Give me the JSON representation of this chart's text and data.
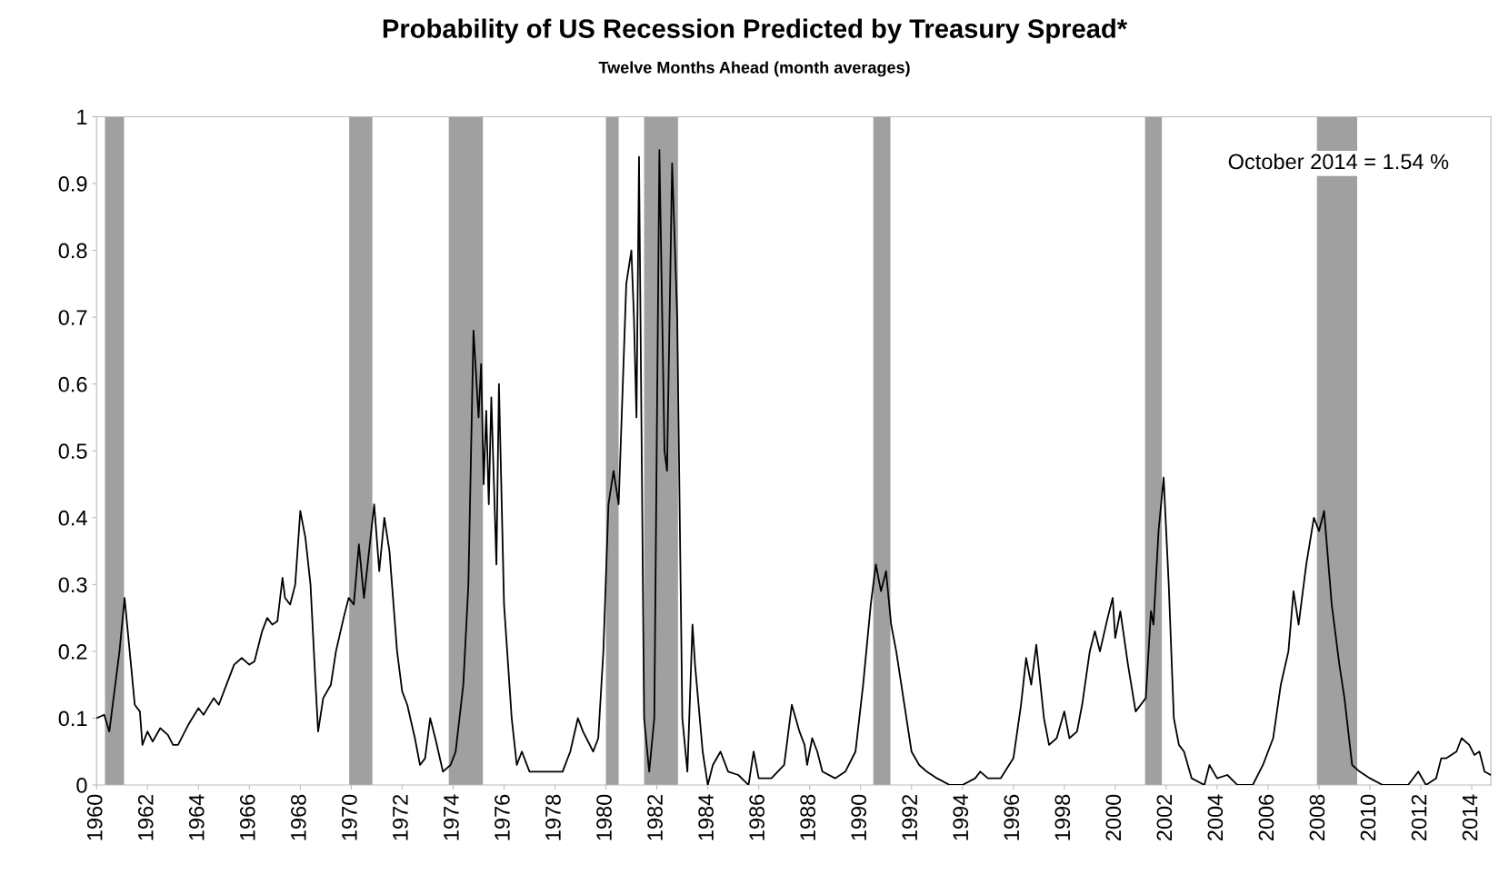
{
  "chart_data": {
    "type": "line",
    "title": "Probability of US Recession Predicted by Treasury Spread*",
    "subtitle": "Twelve Months Ahead (month averages)",
    "annotations": [
      "October 2014 = 1.54 %"
    ],
    "xlim": [
      1960,
      2014.75
    ],
    "xticks": [
      1960,
      1962,
      1964,
      1966,
      1968,
      1970,
      1972,
      1974,
      1976,
      1978,
      1980,
      1982,
      1984,
      1986,
      1988,
      1990,
      1992,
      1994,
      1996,
      1998,
      2000,
      2002,
      2004,
      2006,
      2008,
      2010,
      2012,
      2014
    ],
    "ylim": [
      0,
      1
    ],
    "yticks": [
      0,
      0.1,
      0.2,
      0.3,
      0.4,
      0.5,
      0.6,
      0.7,
      0.8,
      0.9,
      1
    ],
    "grid": false,
    "line_style": "solid",
    "marker": "none",
    "bands": [
      {
        "axis": "x",
        "from": 1960.33,
        "to": 1961.08,
        "color": "#a0a0a0"
      },
      {
        "axis": "x",
        "from": 1969.92,
        "to": 1970.83,
        "color": "#a0a0a0"
      },
      {
        "axis": "x",
        "from": 1973.83,
        "to": 1975.17,
        "color": "#a0a0a0"
      },
      {
        "axis": "x",
        "from": 1980.0,
        "to": 1980.5,
        "color": "#a0a0a0"
      },
      {
        "axis": "x",
        "from": 1981.5,
        "to": 1982.83,
        "color": "#a0a0a0"
      },
      {
        "axis": "x",
        "from": 1990.5,
        "to": 1991.17,
        "color": "#a0a0a0"
      },
      {
        "axis": "x",
        "from": 2001.17,
        "to": 2001.83,
        "color": "#a0a0a0"
      },
      {
        "axis": "x",
        "from": 2007.92,
        "to": 2009.5,
        "color": "#a0a0a0"
      }
    ],
    "series": [
      {
        "color": "#000000",
        "x": [
          1960.0,
          1960.3,
          1960.5,
          1960.6,
          1960.9,
          1961.1,
          1961.3,
          1961.5,
          1961.7,
          1961.8,
          1962.0,
          1962.2,
          1962.5,
          1962.8,
          1963.0,
          1963.2,
          1963.6,
          1964.0,
          1964.2,
          1964.6,
          1964.8,
          1965.1,
          1965.4,
          1965.7,
          1966.0,
          1966.2,
          1966.5,
          1966.7,
          1966.9,
          1967.1,
          1967.3,
          1967.4,
          1967.6,
          1967.8,
          1968.0,
          1968.2,
          1968.4,
          1968.6,
          1968.7,
          1968.9,
          1969.2,
          1969.4,
          1969.7,
          1969.9,
          1970.1,
          1970.3,
          1970.5,
          1970.7,
          1970.9,
          1971.1,
          1971.3,
          1971.5,
          1971.8,
          1972.0,
          1972.2,
          1972.5,
          1972.7,
          1972.9,
          1973.1,
          1973.3,
          1973.6,
          1973.9,
          1974.1,
          1974.4,
          1974.6,
          1974.8,
          1975.0,
          1975.1,
          1975.2,
          1975.3,
          1975.4,
          1975.5,
          1975.7,
          1975.8,
          1976.0,
          1976.3,
          1976.5,
          1976.7,
          1977.0,
          1977.5,
          1978.0,
          1978.3,
          1978.6,
          1978.9,
          1979.1,
          1979.5,
          1979.7,
          1979.9,
          1980.1,
          1980.3,
          1980.5,
          1980.8,
          1981.0,
          1981.1,
          1981.2,
          1981.3,
          1981.5,
          1981.7,
          1981.9,
          1982.1,
          1982.3,
          1982.4,
          1982.6,
          1982.8,
          1983.0,
          1983.2,
          1983.4,
          1983.5,
          1983.8,
          1984.0,
          1984.2,
          1984.5,
          1984.8,
          1985.2,
          1985.6,
          1985.8,
          1986.0,
          1986.5,
          1987.0,
          1987.3,
          1987.6,
          1987.8,
          1987.9,
          1988.1,
          1988.3,
          1988.5,
          1989.0,
          1989.4,
          1989.8,
          1990.1,
          1990.4,
          1990.6,
          1990.8,
          1991.0,
          1991.2,
          1991.4,
          1991.6,
          1991.8,
          1992.0,
          1992.3,
          1992.6,
          1993.0,
          1993.5,
          1994.0,
          1994.5,
          1994.7,
          1995.0,
          1995.5,
          1996.0,
          1996.3,
          1996.5,
          1996.7,
          1996.9,
          1997.2,
          1997.4,
          1997.7,
          1998.0,
          1998.2,
          1998.5,
          1998.7,
          1999.0,
          1999.2,
          1999.4,
          1999.7,
          1999.9,
          2000.0,
          2000.2,
          2000.5,
          2000.8,
          2001.0,
          2001.2,
          2001.4,
          2001.5,
          2001.7,
          2001.9,
          2002.1,
          2002.3,
          2002.5,
          2002.7,
          2003.0,
          2003.5,
          2003.7,
          2004.0,
          2004.4,
          2004.8,
          2005.4,
          2005.8,
          2006.2,
          2006.5,
          2006.8,
          2007.0,
          2007.2,
          2007.5,
          2007.8,
          2008.0,
          2008.2,
          2008.5,
          2008.8,
          2009.0,
          2009.3,
          2009.6,
          2010.0,
          2010.5,
          2011.5,
          2011.9,
          2012.2,
          2012.6,
          2012.8,
          2013.0,
          2013.4,
          2013.6,
          2013.9,
          2014.1,
          2014.3,
          2014.5,
          2014.75
        ],
        "values": [
          0.1,
          0.105,
          0.08,
          0.11,
          0.2,
          0.28,
          0.2,
          0.12,
          0.11,
          0.06,
          0.08,
          0.065,
          0.085,
          0.075,
          0.06,
          0.06,
          0.09,
          0.115,
          0.105,
          0.13,
          0.12,
          0.15,
          0.18,
          0.19,
          0.18,
          0.185,
          0.23,
          0.25,
          0.24,
          0.245,
          0.31,
          0.28,
          0.27,
          0.3,
          0.41,
          0.37,
          0.3,
          0.15,
          0.08,
          0.13,
          0.15,
          0.2,
          0.25,
          0.28,
          0.27,
          0.36,
          0.28,
          0.35,
          0.42,
          0.32,
          0.4,
          0.35,
          0.2,
          0.14,
          0.12,
          0.07,
          0.03,
          0.04,
          0.1,
          0.07,
          0.02,
          0.03,
          0.05,
          0.15,
          0.3,
          0.68,
          0.55,
          0.63,
          0.45,
          0.56,
          0.42,
          0.58,
          0.33,
          0.6,
          0.27,
          0.1,
          0.03,
          0.05,
          0.02,
          0.02,
          0.02,
          0.02,
          0.05,
          0.1,
          0.08,
          0.05,
          0.07,
          0.2,
          0.42,
          0.47,
          0.42,
          0.75,
          0.8,
          0.7,
          0.55,
          0.94,
          0.1,
          0.02,
          0.1,
          0.95,
          0.5,
          0.47,
          0.93,
          0.7,
          0.1,
          0.02,
          0.24,
          0.18,
          0.05,
          0.0,
          0.03,
          0.05,
          0.02,
          0.015,
          0.0,
          0.05,
          0.01,
          0.01,
          0.03,
          0.12,
          0.08,
          0.06,
          0.03,
          0.07,
          0.05,
          0.02,
          0.01,
          0.02,
          0.05,
          0.15,
          0.27,
          0.33,
          0.29,
          0.32,
          0.24,
          0.2,
          0.15,
          0.1,
          0.05,
          0.03,
          0.02,
          0.01,
          0.0,
          0.0,
          0.01,
          0.02,
          0.01,
          0.01,
          0.04,
          0.12,
          0.19,
          0.15,
          0.21,
          0.1,
          0.06,
          0.07,
          0.11,
          0.07,
          0.08,
          0.12,
          0.2,
          0.23,
          0.2,
          0.25,
          0.28,
          0.22,
          0.26,
          0.18,
          0.11,
          0.12,
          0.13,
          0.26,
          0.24,
          0.38,
          0.46,
          0.3,
          0.1,
          0.06,
          0.05,
          0.01,
          0.0,
          0.03,
          0.01,
          0.015,
          0.0,
          0.0,
          0.03,
          0.07,
          0.15,
          0.2,
          0.29,
          0.24,
          0.33,
          0.4,
          0.38,
          0.41,
          0.27,
          0.18,
          0.13,
          0.03,
          0.02,
          0.01,
          0.0,
          0.0,
          0.02,
          0.0,
          0.01,
          0.04,
          0.04,
          0.05,
          0.07,
          0.06,
          0.045,
          0.05,
          0.02,
          0.015
        ]
      }
    ]
  }
}
